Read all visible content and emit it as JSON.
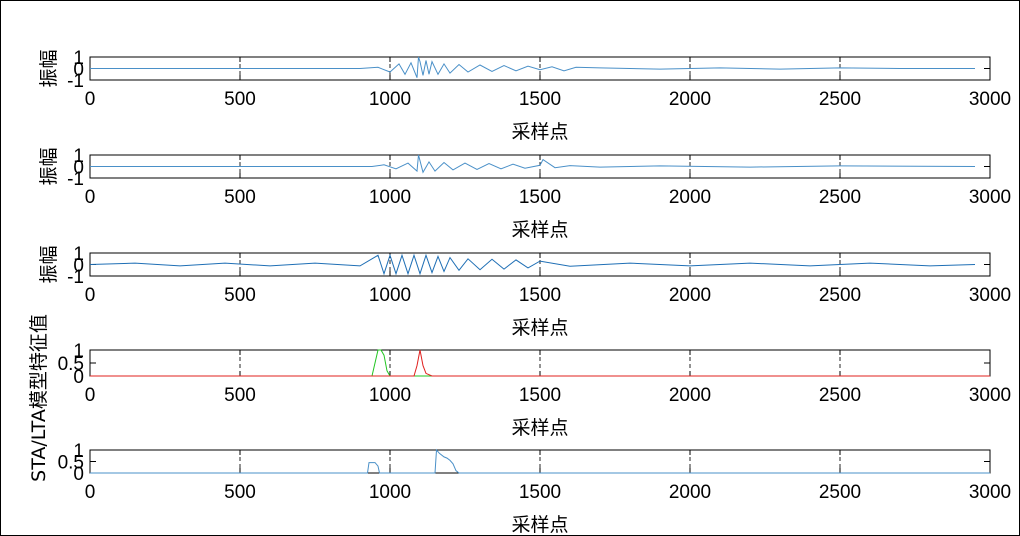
{
  "chart_data": [
    {
      "type": "line",
      "xlabel": "采样点",
      "ylabel": "振幅",
      "xlim": [
        0,
        3000
      ],
      "ylim": [
        -1,
        1
      ],
      "xticks": [
        "0",
        "500",
        "1000",
        "1500",
        "2000",
        "2500",
        "3000"
      ],
      "yticks": [
        "1",
        "0",
        "-1"
      ],
      "grid": true,
      "series": [
        {
          "color": "#4a90c8",
          "x": [
            0,
            900,
            960,
            1000,
            1030,
            1050,
            1070,
            1090,
            1095,
            1100,
            1110,
            1120,
            1130,
            1140,
            1160,
            1180,
            1200,
            1230,
            1260,
            1300,
            1340,
            1380,
            1420,
            1460,
            1500,
            1540,
            1580,
            1620,
            1700,
            1900,
            2100,
            2300,
            2500,
            2700,
            2950
          ],
          "y": [
            0,
            0,
            0.1,
            -0.3,
            0.4,
            -0.5,
            0.5,
            -0.8,
            1.0,
            0.6,
            -0.6,
            0.7,
            -0.5,
            0.6,
            -0.5,
            0.4,
            -0.4,
            0.35,
            -0.3,
            0.3,
            -0.25,
            0.25,
            -0.2,
            0.2,
            -0.1,
            0.15,
            -0.2,
            0.1,
            0.05,
            -0.05,
            0.05,
            -0.05,
            0.05,
            0,
            0
          ]
        }
      ]
    },
    {
      "type": "line",
      "xlabel": "采样点",
      "ylabel": "振幅",
      "xlim": [
        0,
        3000
      ],
      "ylim": [
        -1,
        1
      ],
      "xticks": [
        "0",
        "500",
        "1000",
        "1500",
        "2000",
        "2500",
        "3000"
      ],
      "yticks": [
        "1",
        "0",
        "-1"
      ],
      "grid": true,
      "series": [
        {
          "color": "#4a90c8",
          "x": [
            0,
            940,
            980,
            1020,
            1060,
            1090,
            1095,
            1100,
            1110,
            1130,
            1150,
            1180,
            1210,
            1250,
            1290,
            1330,
            1370,
            1410,
            1450,
            1500,
            1510,
            1550,
            1600,
            1700,
            1900,
            2200,
            2500,
            2950
          ],
          "y": [
            0,
            0,
            0.15,
            -0.2,
            0.3,
            -0.4,
            1.0,
            0.5,
            -0.5,
            0.4,
            -0.4,
            0.35,
            -0.3,
            0.3,
            -0.25,
            0.25,
            -0.2,
            0.2,
            -0.15,
            0.1,
            0.6,
            -0.1,
            0.08,
            -0.05,
            0.05,
            -0.05,
            0.05,
            0
          ]
        }
      ]
    },
    {
      "type": "line",
      "xlabel": "采样点",
      "ylabel": "振幅",
      "xlim": [
        0,
        3000
      ],
      "ylim": [
        -1,
        1
      ],
      "xticks": [
        "0",
        "500",
        "1000",
        "1500",
        "2000",
        "2500",
        "3000"
      ],
      "yticks": [
        "1",
        "0",
        "-1"
      ],
      "grid": true,
      "series": [
        {
          "color": "#1f6fb5",
          "x": [
            0,
            150,
            300,
            450,
            600,
            750,
            900,
            960,
            980,
            1000,
            1020,
            1040,
            1060,
            1080,
            1100,
            1120,
            1140,
            1160,
            1180,
            1200,
            1230,
            1260,
            1300,
            1340,
            1380,
            1420,
            1460,
            1500,
            1600,
            1800,
            2000,
            2200,
            2400,
            2600,
            2800,
            2950
          ],
          "y": [
            0,
            0.12,
            -0.12,
            0.12,
            -0.12,
            0.12,
            -0.12,
            0.8,
            -0.8,
            0.8,
            -0.8,
            0.8,
            -0.8,
            0.8,
            -0.8,
            0.8,
            -0.7,
            0.7,
            -0.6,
            0.6,
            -0.5,
            0.5,
            -0.45,
            0.45,
            -0.4,
            0.4,
            -0.3,
            0.3,
            -0.15,
            0.12,
            -0.12,
            0.12,
            -0.12,
            0.12,
            -0.12,
            0
          ]
        }
      ]
    },
    {
      "type": "line",
      "xlabel": "采样点",
      "ylabel": "STA/LTA模型特征值",
      "xlim": [
        0,
        3000
      ],
      "ylim": [
        0,
        1
      ],
      "xticks": [
        "0",
        "500",
        "1000",
        "1500",
        "2000",
        "2500",
        "3000"
      ],
      "yticks": [
        "1",
        "0.5",
        "0"
      ],
      "grid": true,
      "series": [
        {
          "color": "#22c522",
          "x": [
            0,
            940,
            950,
            960,
            970,
            980,
            990,
            1000,
            3000
          ],
          "y": [
            0,
            0,
            0.5,
            1.0,
            1.0,
            0.8,
            0.2,
            0,
            0
          ]
        },
        {
          "color": "#e0201e",
          "x": [
            0,
            1080,
            1090,
            1100,
            1110,
            1120,
            1140,
            3000
          ],
          "y": [
            0,
            0,
            0.4,
            1.0,
            0.4,
            0.1,
            0,
            0
          ]
        }
      ]
    },
    {
      "type": "line",
      "xlabel": "采样点",
      "ylabel": "",
      "xlim": [
        0,
        3000
      ],
      "ylim": [
        0,
        1
      ],
      "xticks": [
        "0",
        "500",
        "1000",
        "1500",
        "2000",
        "2500",
        "3000"
      ],
      "yticks": [
        "1",
        "0.5",
        "0"
      ],
      "grid": true,
      "series": [
        {
          "color": "#4a90c8",
          "x": [
            0,
            925,
            930,
            950,
            960,
            965,
            1150,
            1155,
            1165,
            1180,
            1190,
            1200,
            1210,
            1220,
            1230,
            3000
          ],
          "y": [
            0,
            0,
            0.45,
            0.45,
            0.3,
            0,
            0,
            1.0,
            0.85,
            0.7,
            0.65,
            0.55,
            0.4,
            0.1,
            0,
            0
          ]
        }
      ]
    }
  ]
}
